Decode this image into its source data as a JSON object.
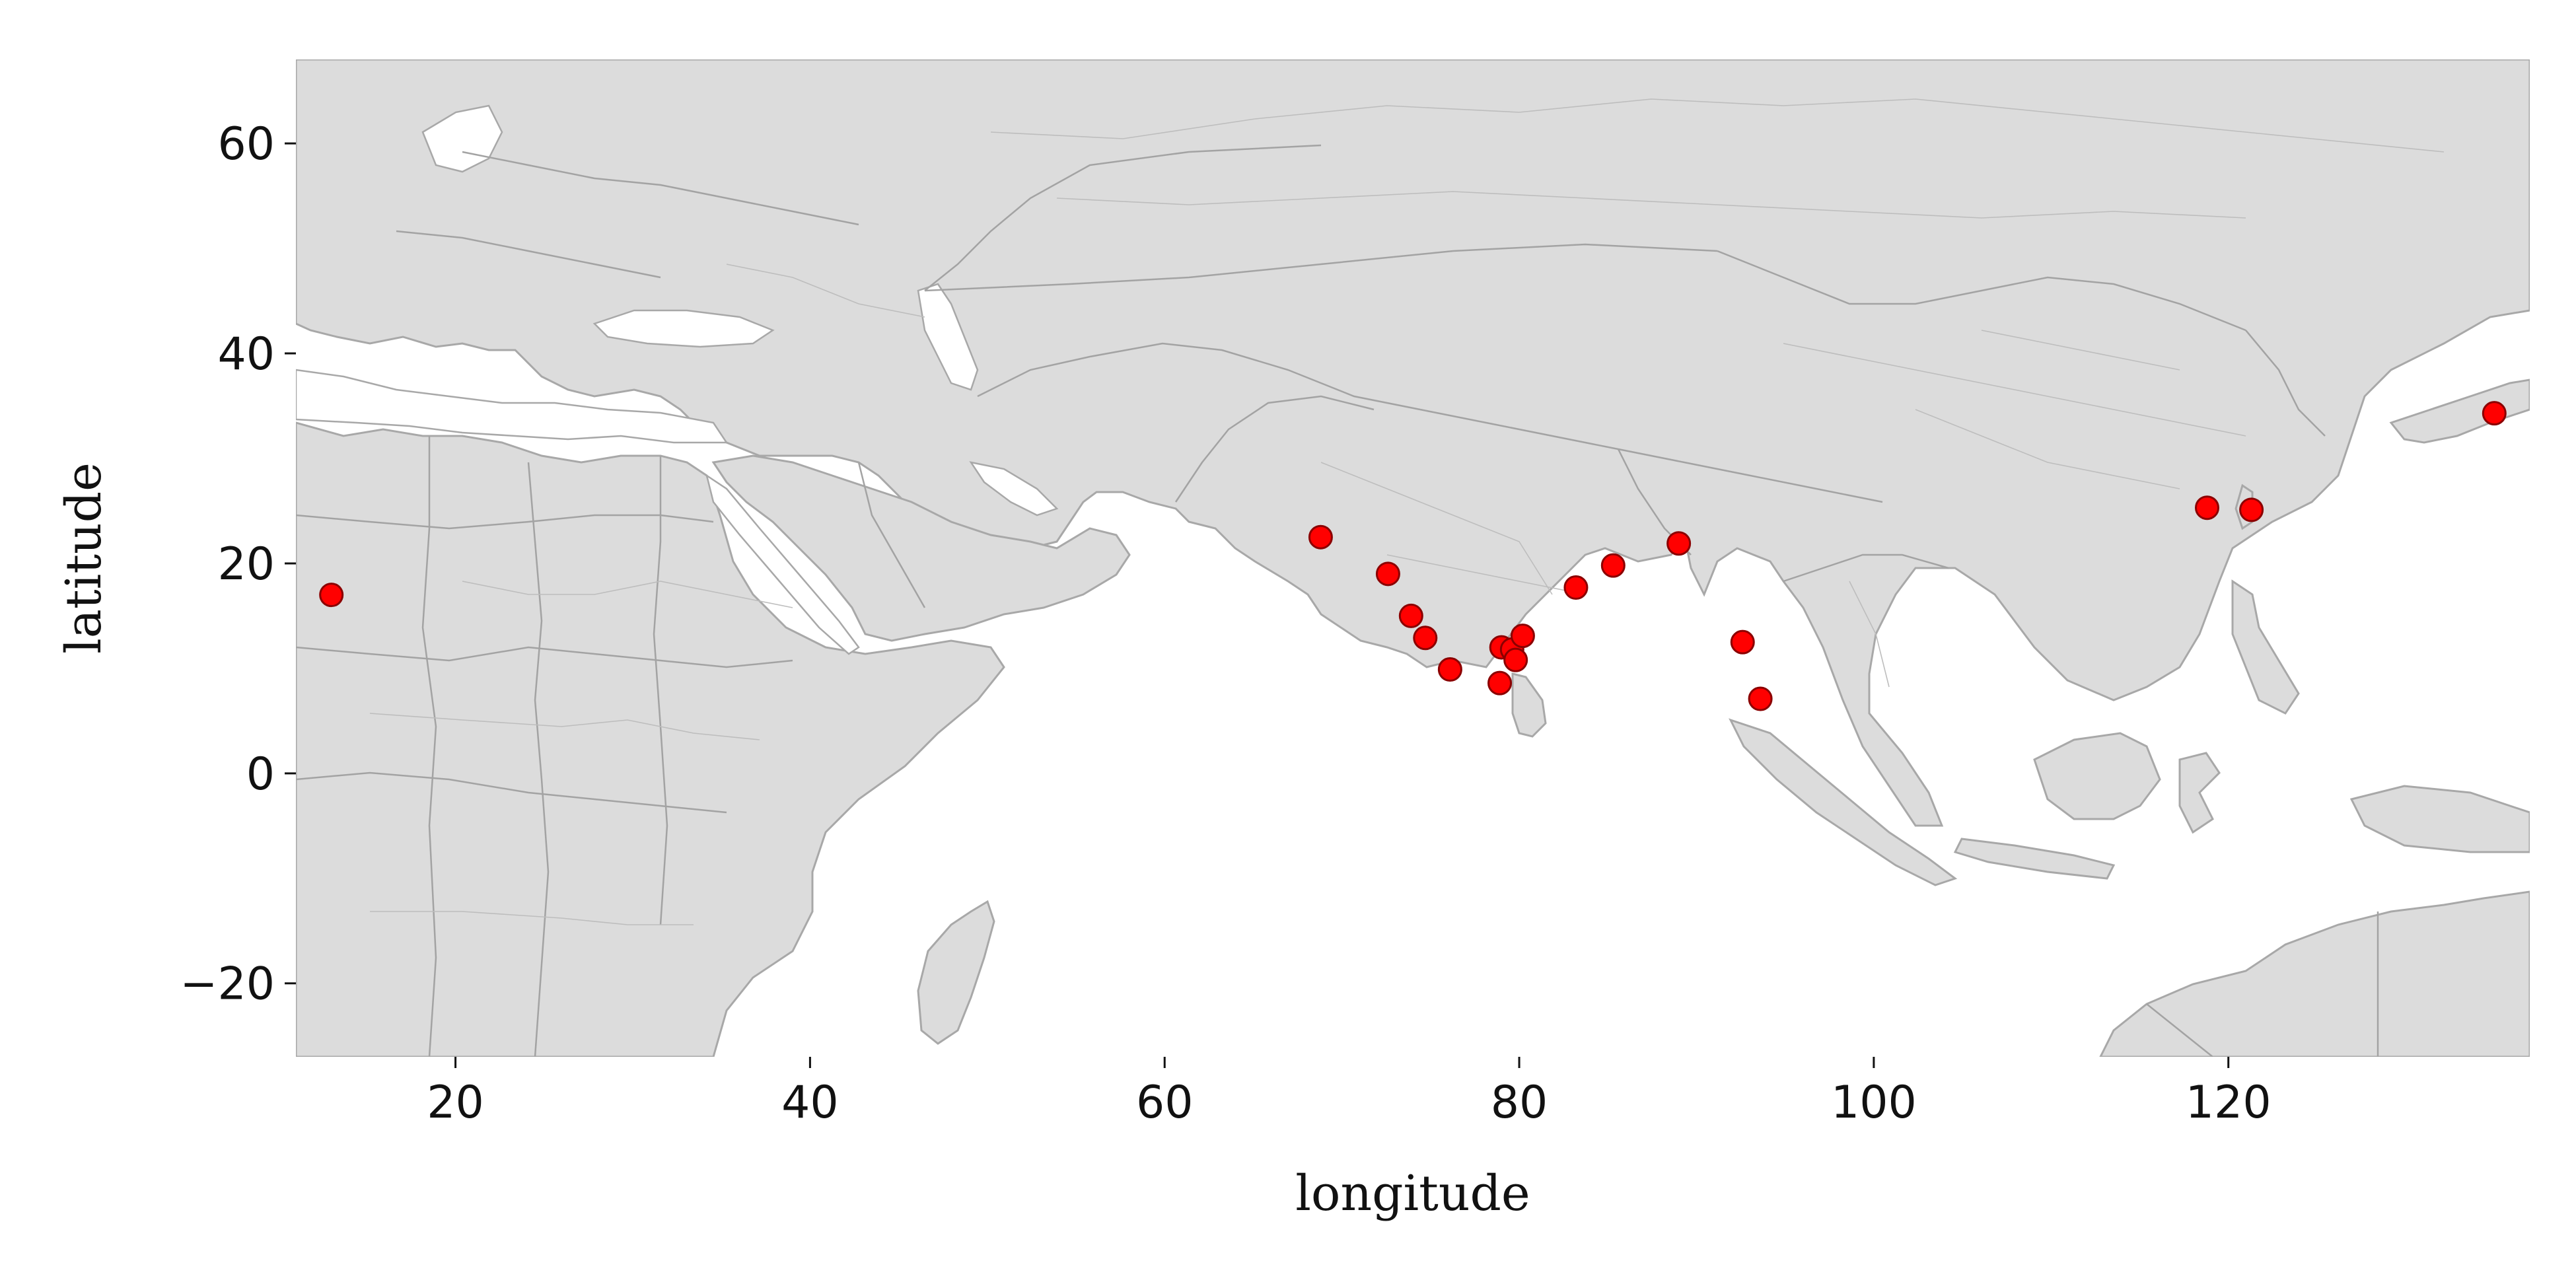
{
  "chart_data": {
    "type": "scatter",
    "xlabel": "longitude",
    "ylabel": "latitude",
    "xlim": [
      11,
      137
    ],
    "ylim": [
      -27,
      68
    ],
    "xticks": [
      20,
      40,
      60,
      80,
      100,
      120
    ],
    "yticks": [
      -20,
      0,
      20,
      40,
      60
    ],
    "xtick_labels": [
      "20",
      "40",
      "60",
      "80",
      "100",
      "120"
    ],
    "ytick_labels": [
      "−20",
      "0",
      "20",
      "40",
      "60"
    ],
    "grid": false,
    "basemap": "world country and province borders, light grey",
    "colors": {
      "land": "#dcdcdc",
      "border": "#a8a8a8",
      "point_fill": "#ff0000",
      "point_edge": "#8b0000"
    },
    "points": [
      {
        "lon": 13.0,
        "lat": 17.0
      },
      {
        "lon": 68.8,
        "lat": 22.5
      },
      {
        "lon": 72.6,
        "lat": 19.0
      },
      {
        "lon": 73.9,
        "lat": 15.0
      },
      {
        "lon": 74.7,
        "lat": 12.9
      },
      {
        "lon": 76.1,
        "lat": 9.9
      },
      {
        "lon": 78.9,
        "lat": 8.6
      },
      {
        "lon": 79.0,
        "lat": 12.0
      },
      {
        "lon": 79.6,
        "lat": 11.8
      },
      {
        "lon": 79.8,
        "lat": 10.8
      },
      {
        "lon": 80.2,
        "lat": 13.1
      },
      {
        "lon": 83.2,
        "lat": 17.7
      },
      {
        "lon": 85.3,
        "lat": 19.8
      },
      {
        "lon": 89.0,
        "lat": 21.9
      },
      {
        "lon": 92.6,
        "lat": 12.5
      },
      {
        "lon": 93.6,
        "lat": 7.1
      },
      {
        "lon": 118.8,
        "lat": 25.3
      },
      {
        "lon": 121.3,
        "lat": 25.1
      },
      {
        "lon": 135.0,
        "lat": 34.3
      }
    ]
  }
}
